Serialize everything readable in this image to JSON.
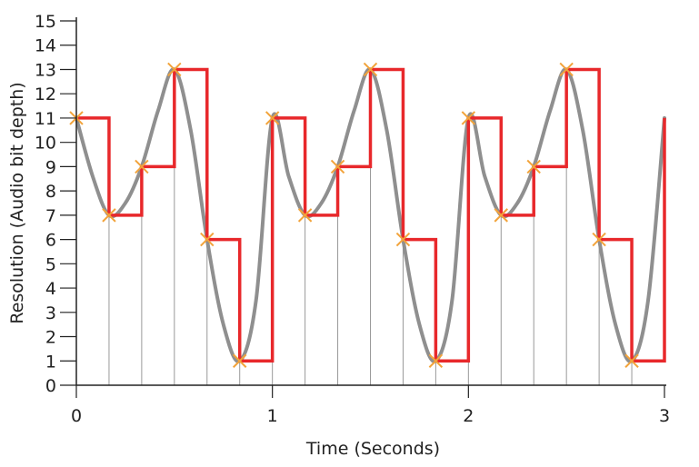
{
  "chart_data": {
    "type": "line",
    "xlabel": "Time (Seconds)",
    "ylabel": "Resolution (Audio bit depth)",
    "xlim": [
      0,
      3
    ],
    "ylim": [
      0,
      15
    ],
    "x_ticks": [
      0,
      1,
      2,
      3
    ],
    "y_ticks": [
      0,
      1,
      2,
      3,
      4,
      5,
      6,
      7,
      8,
      9,
      10,
      11,
      12,
      13,
      14,
      15
    ],
    "grid": false,
    "series": [
      {
        "kind": "continuous-signal",
        "color": "#8f8f8f",
        "x": [
          0,
          0.0833,
          0.1667,
          0.25,
          0.3333,
          0.4167,
          0.5,
          0.5833,
          0.6667,
          0.75,
          0.8333,
          0.9167,
          1,
          1.0833,
          1.1667,
          1.25,
          1.3333,
          1.4167,
          1.5,
          1.5833,
          1.6667,
          1.75,
          1.8333,
          1.9167,
          2,
          2.0833,
          2.1667,
          2.25,
          2.3333,
          2.4167,
          2.5,
          2.5833,
          2.6667,
          2.75,
          2.8333,
          2.9167,
          3
        ],
        "y": [
          11,
          8.6,
          7,
          7.5,
          9,
          11.3,
          13,
          10.5,
          6,
          2.5,
          1,
          3.5,
          11,
          8.6,
          7,
          7.5,
          9,
          11.3,
          13,
          10.5,
          6,
          2.5,
          1,
          3.5,
          11,
          8.6,
          7,
          7.5,
          9,
          11.3,
          13,
          10.5,
          6,
          2.5,
          1,
          3.5,
          11
        ]
      },
      {
        "kind": "quantized-step",
        "color": "#e8282b",
        "x": [
          0,
          0.1667,
          0.3333,
          0.5,
          0.6667,
          0.8333,
          1,
          1.1667,
          1.3333,
          1.5,
          1.6667,
          1.8333,
          2,
          2.1667,
          2.3333,
          2.5,
          2.6667,
          2.8333,
          3
        ],
        "y": [
          11,
          7,
          9,
          13,
          6,
          1,
          11,
          7,
          9,
          13,
          6,
          1,
          11,
          7,
          9,
          13,
          6,
          1,
          11
        ]
      },
      {
        "kind": "sample-markers",
        "marker": "x",
        "color": "#f2a33a",
        "x": [
          0,
          0.1667,
          0.3333,
          0.5,
          0.6667,
          0.8333,
          1,
          1.1667,
          1.3333,
          1.5,
          1.6667,
          1.8333,
          2,
          2.1667,
          2.3333,
          2.5,
          2.6667,
          2.8333
        ],
        "y": [
          11,
          7,
          9,
          13,
          6,
          1,
          11,
          7,
          9,
          13,
          6,
          1,
          11,
          7,
          9,
          13,
          6,
          1
        ]
      }
    ],
    "sample_lines": {
      "color": "#999999",
      "x": [
        0.1667,
        0.3333,
        0.5,
        0.6667,
        0.8333,
        1,
        1.1667,
        1.3333,
        1.5,
        1.6667,
        1.8333,
        2,
        2.1667,
        2.3333,
        2.5,
        2.6667,
        2.8333
      ]
    },
    "axis_color": "#222222"
  }
}
